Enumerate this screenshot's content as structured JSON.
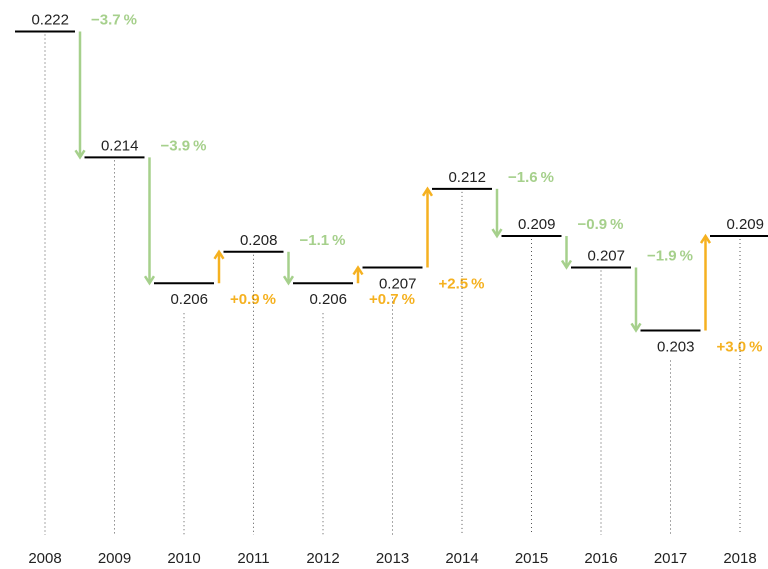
{
  "chart_data": {
    "type": "step",
    "categories": [
      "2008",
      "2009",
      "2010",
      "2011",
      "2012",
      "2013",
      "2014",
      "2015",
      "2016",
      "2017",
      "2018"
    ],
    "values": [
      0.222,
      0.214,
      0.206,
      0.208,
      0.206,
      0.207,
      0.212,
      0.209,
      0.207,
      0.203,
      0.209
    ],
    "color": "#000000",
    "changes": {
      "values": [
        -3.7,
        -3.9,
        0.9,
        -1.1,
        0.7,
        2.5,
        -1.6,
        -0.9,
        -1.9,
        3.0
      ],
      "value_labels": [
        "−3.7 %",
        "−3.9 %",
        "+0.9 %",
        "−1.1 %",
        "+0.7 %",
        "+2.5 %",
        "−1.6 %",
        "−0.9 %",
        "−1.9 %",
        "+3.0 %"
      ]
    },
    "down_color": "#a6d08c",
    "up_color": "#f5b120",
    "ylim": [
      0.19,
      0.224
    ]
  }
}
